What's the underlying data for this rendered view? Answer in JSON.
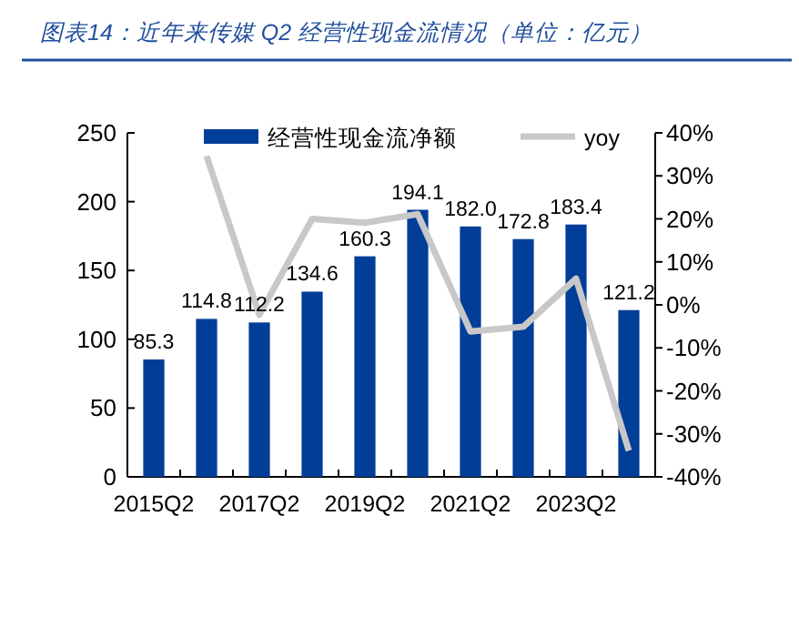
{
  "chart_data": {
    "type": "bar",
    "title": "图表14：近年来传媒 Q2 经营性现金流情况（单位：亿元）",
    "categories": [
      "2015Q2",
      null,
      "2017Q2",
      null,
      "2019Q2",
      null,
      "2021Q2",
      null,
      "2023Q2",
      null
    ],
    "series": [
      {
        "name": "经营性现金流净额",
        "color": "#003e98",
        "values": [
          85.3,
          114.8,
          112.2,
          134.6,
          160.3,
          194.1,
          182.0,
          172.8,
          183.4,
          121.2
        ],
        "value_labels": [
          "85.3",
          "114.8",
          "112.2",
          "134.6",
          "160.3",
          "194.1",
          "182.0",
          "172.8",
          "183.4",
          "121.2"
        ]
      },
      {
        "name": "yoy",
        "type": "line",
        "axis": "y2",
        "color": "#c8c8c8",
        "values": [
          null,
          34.6,
          -2.3,
          20.0,
          19.1,
          21.1,
          -6.2,
          -5.1,
          6.1,
          -33.9
        ]
      }
    ],
    "ylim": [
      0,
      250
    ],
    "yticks": [
      0,
      50,
      100,
      150,
      200,
      250
    ],
    "y2lim": [
      -40,
      40
    ],
    "y2ticks": [
      {
        "value": -40,
        "label": "-40%"
      },
      {
        "value": -30,
        "label": "-30%"
      },
      {
        "value": -20,
        "label": "-20%"
      },
      {
        "value": -10,
        "label": "-10%"
      },
      {
        "value": 0,
        "label": "0%"
      },
      {
        "value": 10,
        "label": "10%"
      },
      {
        "value": 20,
        "label": "20%"
      },
      {
        "value": 30,
        "label": "30%"
      },
      {
        "value": 40,
        "label": "40%"
      }
    ],
    "grid": false,
    "legend": "top"
  }
}
